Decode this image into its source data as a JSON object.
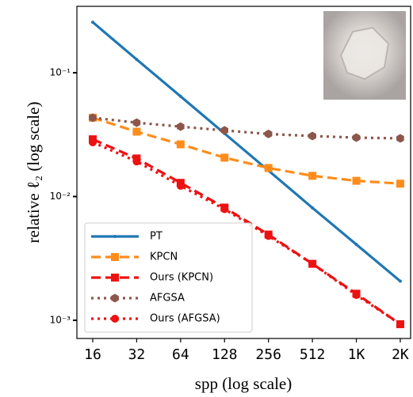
{
  "chart_data": {
    "type": "line",
    "xlabel": "spp (log scale)",
    "ylabel": "relative ℓ₂ (log scale)",
    "xscale": "log2",
    "yscale": "log",
    "x": [
      16,
      32,
      64,
      128,
      256,
      512,
      1024,
      2048
    ],
    "xlim": [
      12.46,
      2411
    ],
    "xticks": [
      16,
      32,
      64,
      128,
      256,
      512,
      {
        "value": 1024,
        "label": "1K"
      },
      {
        "value": 2048,
        "label": "2K"
      }
    ],
    "ylim": [
      0.000713,
      0.344
    ],
    "yticks": [
      {
        "value": 0.1,
        "label": "10⁻¹"
      },
      {
        "value": 0.01,
        "label": "10⁻²"
      },
      {
        "value": 0.001,
        "label": "10⁻³"
      }
    ],
    "legend": "lower left",
    "series": [
      {
        "name": "PT",
        "color": "#1f77b4",
        "linestyle": "solid",
        "marker": "dot",
        "values": [
          0.256,
          0.128,
          0.0644,
          0.0323,
          0.0162,
          0.0081,
          0.0041,
          0.00207
        ]
      },
      {
        "name": "KPCN",
        "color": "#ff8c1a",
        "linestyle": "dashed",
        "marker": "square",
        "values": [
          0.0433,
          0.0334,
          0.0264,
          0.0206,
          0.017,
          0.0147,
          0.0134,
          0.0127
        ]
      },
      {
        "name": "Ours (KPCN)",
        "color": "#ee1111",
        "linestyle": "dashed",
        "marker": "square",
        "values": [
          0.029,
          0.0203,
          0.0129,
          0.00814,
          0.00493,
          0.00286,
          0.00164,
          0.00093
        ]
      },
      {
        "name": "AFGSA",
        "color": "#8c564b",
        "linestyle": "dotted",
        "marker": "hexagon",
        "values": [
          0.0433,
          0.0395,
          0.0367,
          0.0342,
          0.032,
          0.0308,
          0.0299,
          0.0295
        ]
      },
      {
        "name": "Ours (AFGSA)",
        "color": "#ee1111",
        "linestyle": "dotted",
        "marker": "circle",
        "values": [
          0.0274,
          0.0192,
          0.0122,
          0.0079,
          0.0048,
          0.00286,
          0.0016,
          0.00093
        ]
      }
    ]
  }
}
